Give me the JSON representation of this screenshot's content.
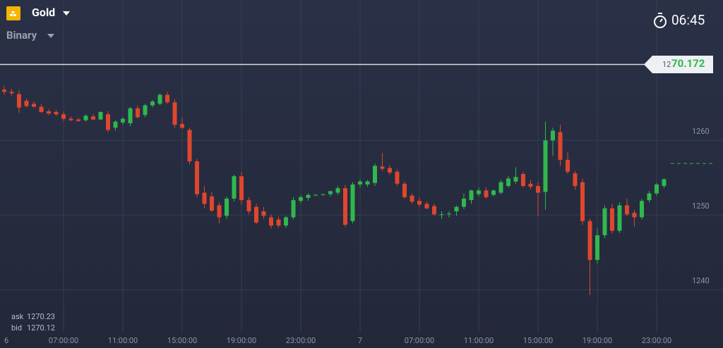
{
  "header": {
    "asset": "Gold",
    "mode": "Binary",
    "timer": "06:45"
  },
  "price_tag": {
    "prefix": "12",
    "main": "70.172"
  },
  "quote": {
    "ask_label": "ask",
    "ask": "1270.23",
    "bid_label": "bid",
    "bid": "1270.12"
  },
  "chart_data": {
    "type": "candlestick",
    "ylim": [
      1232.2,
      1278.8
    ],
    "yticks": [
      1240,
      1250,
      1260
    ],
    "grid": true,
    "up_color": "#2fb84e",
    "down_color": "#e0462d",
    "xticks": [
      {
        "value": 0,
        "label": "6"
      },
      {
        "value": 8,
        "label": "07:00:00"
      },
      {
        "value": 16,
        "label": "11:00:00"
      },
      {
        "value": 24,
        "label": "15:00:00"
      },
      {
        "value": 32,
        "label": "19:00:00"
      },
      {
        "value": 40,
        "label": "23:00:00"
      },
      {
        "value": 48,
        "label": "7"
      },
      {
        "value": 56,
        "label": "07:00:00"
      },
      {
        "value": 64,
        "label": "11:00:00"
      },
      {
        "value": 72,
        "label": "15:00:00"
      },
      {
        "value": 80,
        "label": "19:00:00"
      },
      {
        "value": 88,
        "label": "23:00:00"
      }
    ],
    "open": [
      1266.8,
      1266.5,
      1266.2,
      1265.3,
      1264.9,
      1264.5,
      1263.9,
      1263.8,
      1263.5,
      1262.9,
      1262.8,
      1262.7,
      1263.2,
      1262.8,
      1263.5,
      1261.7,
      1262.4,
      1262.3,
      1264.3,
      1263.4,
      1264.7,
      1264.9,
      1266.1,
      1265.1,
      1262.2,
      1261.4,
      1257.2,
      1253.0,
      1252.5,
      1251.3,
      1249.9,
      1252.2,
      1255.2,
      1252.0,
      1251.1,
      1250.5,
      1249.7,
      1249.4,
      1248.6,
      1249.7,
      1251.9,
      1252.3,
      1252.7,
      1252.7,
      1252.8,
      1253.0,
      1253.6,
      1249.2,
      1254.1,
      1254.1,
      1254.3,
      1256.5,
      1256.3,
      1255.8,
      1254.2,
      1252.6,
      1251.9,
      1251.5,
      1251.2,
      1250.1,
      1250.1,
      1250.5,
      1251.1,
      1252.0,
      1252.8,
      1253.3,
      1252.7,
      1253.0,
      1253.9,
      1254.5,
      1255.5,
      1254.2,
      1253.9,
      1253.1,
      1260.0,
      1261.1,
      1257.4,
      1255.6,
      1254.4,
      1249.2,
      1244.0,
      1247.3,
      1250.9,
      1247.9,
      1251.3,
      1250.3,
      1249.7,
      1252.0,
      1252.9,
      1253.9
    ],
    "high": [
      1267.3,
      1266.9,
      1266.7,
      1265.6,
      1265.2,
      1264.9,
      1264.2,
      1264.1,
      1263.9,
      1263.2,
      1263.0,
      1263.5,
      1263.5,
      1263.9,
      1263.9,
      1262.7,
      1263.1,
      1264.5,
      1264.7,
      1264.9,
      1265.4,
      1266.3,
      1266.5,
      1265.5,
      1263.1,
      1261.7,
      1257.5,
      1253.9,
      1253.1,
      1251.7,
      1252.5,
      1255.4,
      1255.8,
      1252.4,
      1251.5,
      1251.1,
      1250.1,
      1249.8,
      1249.9,
      1252.4,
      1252.7,
      1252.9,
      1252.8,
      1252.8,
      1253.3,
      1253.9,
      1254.0,
      1254.4,
      1254.8,
      1254.7,
      1256.9,
      1258.3,
      1256.7,
      1256.1,
      1254.5,
      1252.9,
      1252.3,
      1251.8,
      1251.5,
      1250.5,
      1250.5,
      1251.3,
      1252.9,
      1253.4,
      1253.7,
      1253.7,
      1253.4,
      1254.7,
      1255.2,
      1256.4,
      1255.8,
      1254.7,
      1254.4,
      1262.5,
      1261.7,
      1262.1,
      1258.4,
      1255.9,
      1254.9,
      1249.5,
      1248.2,
      1251.3,
      1251.5,
      1251.7,
      1252.2,
      1250.7,
      1252.2,
      1253.2,
      1254.3,
      1254.9
    ],
    "low": [
      1266.1,
      1266.0,
      1263.7,
      1264.4,
      1264.4,
      1263.7,
      1263.4,
      1263.3,
      1262.6,
      1262.6,
      1262.5,
      1262.5,
      1262.7,
      1262.7,
      1261.1,
      1261.3,
      1262.1,
      1261.9,
      1262.9,
      1263.1,
      1264.4,
      1264.7,
      1264.9,
      1261.7,
      1261.5,
      1256.8,
      1252.4,
      1250.9,
      1250.4,
      1248.9,
      1249.5,
      1251.8,
      1251.4,
      1250.1,
      1248.8,
      1249.5,
      1248.2,
      1248.3,
      1248.3,
      1249.4,
      1251.6,
      1251.9,
      1252.6,
      1252.6,
      1252.5,
      1252.7,
      1248.4,
      1248.9,
      1253.7,
      1253.8,
      1253.9,
      1255.9,
      1255.4,
      1253.9,
      1252.2,
      1251.5,
      1251.1,
      1250.8,
      1249.9,
      1249.5,
      1249.7,
      1249.9,
      1250.8,
      1251.5,
      1252.5,
      1252.2,
      1252.5,
      1252.8,
      1253.7,
      1254.2,
      1253.7,
      1253.5,
      1249.9,
      1250.7,
      1257.9,
      1256.6,
      1255.5,
      1253.4,
      1248.7,
      1239.3,
      1243.5,
      1246.9,
      1247.5,
      1247.6,
      1249.8,
      1248.5,
      1249.4,
      1251.7,
      1252.6,
      1253.6
    ],
    "close": [
      1266.5,
      1266.3,
      1264.4,
      1264.6,
      1264.5,
      1263.8,
      1263.6,
      1263.5,
      1262.9,
      1262.7,
      1262.6,
      1263.3,
      1262.8,
      1263.8,
      1261.4,
      1262.5,
      1262.9,
      1264.3,
      1263.1,
      1264.7,
      1265.2,
      1266.1,
      1265.1,
      1262.1,
      1261.7,
      1257.2,
      1252.8,
      1251.5,
      1250.6,
      1249.7,
      1252.2,
      1255.2,
      1252.0,
      1250.5,
      1249.0,
      1249.9,
      1248.6,
      1248.6,
      1249.7,
      1252.0,
      1252.4,
      1252.7,
      1252.7,
      1252.8,
      1253.2,
      1253.6,
      1248.7,
      1254.1,
      1254.5,
      1254.5,
      1256.6,
      1256.2,
      1255.7,
      1254.2,
      1252.4,
      1251.8,
      1251.4,
      1250.9,
      1250.1,
      1250.1,
      1250.2,
      1251.1,
      1252.2,
      1253.3,
      1253.3,
      1252.4,
      1253.3,
      1254.4,
      1254.9,
      1255.1,
      1253.9,
      1253.8,
      1253.0,
      1260.0,
      1261.3,
      1257.4,
      1255.8,
      1253.9,
      1249.2,
      1244.0,
      1247.3,
      1250.9,
      1247.9,
      1251.3,
      1250.1,
      1249.7,
      1251.9,
      1252.9,
      1254.1,
      1254.8
    ]
  }
}
